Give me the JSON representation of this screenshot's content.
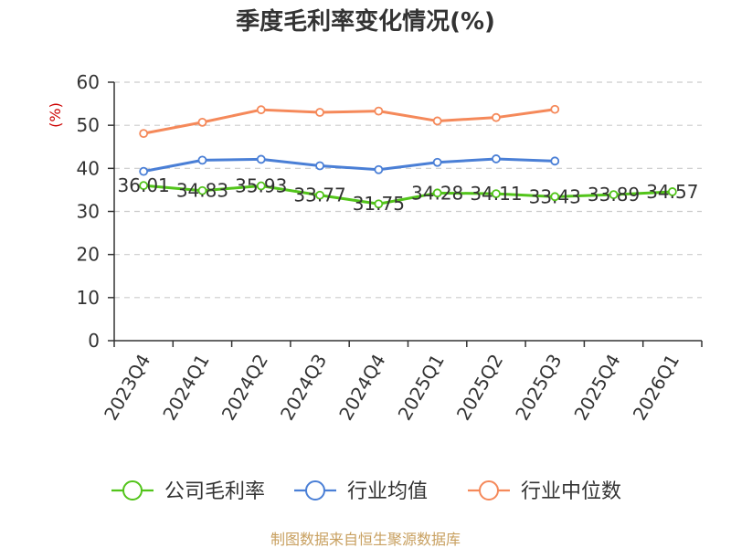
{
  "chart_data": {
    "type": "line",
    "title": "季度毛利率变化情况(%)",
    "ylabel": "(%)",
    "xlabel": "",
    "ylim": [
      0,
      60
    ],
    "yticks": [
      0,
      10,
      20,
      30,
      40,
      50,
      60
    ],
    "categories": [
      "2023Q4",
      "2024Q1",
      "2024Q2",
      "2024Q3",
      "2024Q4",
      "2025Q1",
      "2025Q2",
      "2025Q3",
      "2025Q4",
      "2026Q1"
    ],
    "grid": true,
    "legend_position": "bottom",
    "series": [
      {
        "name": "公司毛利率",
        "color": "#52c41a",
        "values": [
          36.01,
          34.83,
          35.93,
          33.77,
          31.75,
          34.28,
          34.11,
          33.43,
          33.89,
          34.57
        ],
        "data_labels": [
          "36.01",
          "34.83",
          "35.93",
          "33.77",
          "31.75",
          "34.28",
          "34.11",
          "33.43",
          "33.89",
          "34.57"
        ]
      },
      {
        "name": "行业均值",
        "color": "#4a7fd6",
        "values": [
          39.3,
          41.9,
          42.1,
          40.6,
          39.7,
          41.4,
          42.2,
          41.7,
          null,
          null
        ]
      },
      {
        "name": "行业中位数",
        "color": "#f5895a",
        "values": [
          48.1,
          50.7,
          53.6,
          53.0,
          53.3,
          51.0,
          51.8,
          53.7,
          null,
          null
        ]
      }
    ]
  },
  "footer": {
    "source": "制图数据来自恒生聚源数据库"
  }
}
